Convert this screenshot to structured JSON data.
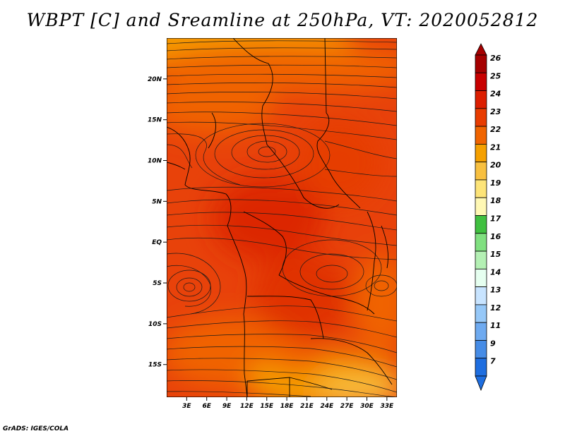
{
  "title": "WBPT [C] and Sreamline at 250hPa, VT: 2020052812",
  "credit": "GrADS: IGES/COLA",
  "map": {
    "lat_labels": [
      "20N",
      "15N",
      "10N",
      "5N",
      "EQ",
      "5S",
      "10S",
      "15S"
    ],
    "lat_values": [
      20,
      15,
      10,
      5,
      0,
      -5,
      -10,
      -15
    ],
    "lon_labels": [
      "3E",
      "6E",
      "9E",
      "12E",
      "15E",
      "18E",
      "21E",
      "24E",
      "27E",
      "30E",
      "33E"
    ],
    "lon_values": [
      3,
      6,
      9,
      12,
      15,
      18,
      21,
      24,
      27,
      30,
      33
    ],
    "lat_range": [
      -19,
      25
    ],
    "lon_range": [
      0,
      34.5
    ]
  },
  "colorbar": {
    "labels": [
      "26",
      "25",
      "24",
      "23",
      "22",
      "21",
      "20",
      "19",
      "18",
      "17",
      "16",
      "15",
      "14",
      "13",
      "12",
      "11",
      "9",
      "7"
    ],
    "colors": [
      "#a50000",
      "#c80000",
      "#dc1e00",
      "#e83c00",
      "#f06400",
      "#f5a000",
      "#f8c040",
      "#fde478",
      "#fff8b4",
      "#40c040",
      "#80e080",
      "#b4f0b4",
      "#e6fff0",
      "#c8e4ff",
      "#96c8f8",
      "#6eaaf0",
      "#468ce6",
      "#1e6ee0"
    ]
  }
}
